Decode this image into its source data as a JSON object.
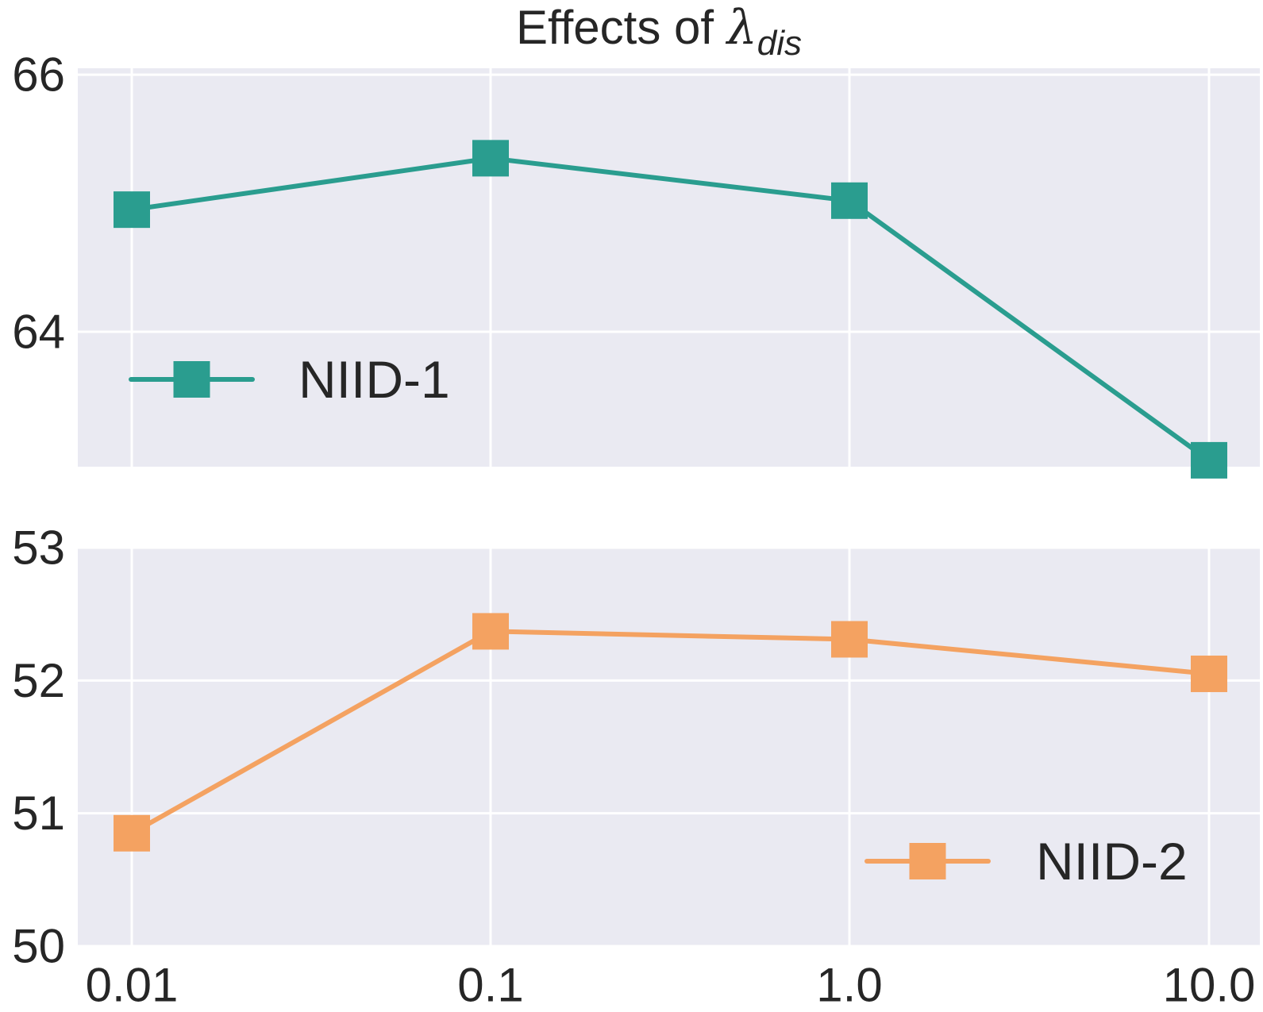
{
  "chart_data": {
    "type": "line",
    "title_prefix": "Effects of ",
    "title_symbol": "λ",
    "title_subscript": "dis",
    "x_tick_labels": [
      "0.01",
      "0.1",
      "1.0",
      "10.0"
    ],
    "panels": [
      {
        "name": "top",
        "series": [
          {
            "name": "NIID-1",
            "values": [
              64.95,
              65.35,
              65.02,
              63.0
            ],
            "color": "#2a9d8f"
          }
        ],
        "ylim": [
          62.95,
          66.05
        ],
        "yticks": [
          64,
          66
        ],
        "ytick_labels": [
          "64",
          "66"
        ],
        "legend": "middle-left"
      },
      {
        "name": "bottom",
        "series": [
          {
            "name": "NIID-2",
            "values": [
              50.85,
              52.37,
              52.31,
              52.05
            ],
            "color": "#f4a261"
          }
        ],
        "ylim": [
          50.0,
          53.0
        ],
        "yticks": [
          50,
          51,
          52,
          53
        ],
        "ytick_labels": [
          "50",
          "51",
          "52",
          "53"
        ],
        "legend": "lower-right"
      }
    ]
  }
}
